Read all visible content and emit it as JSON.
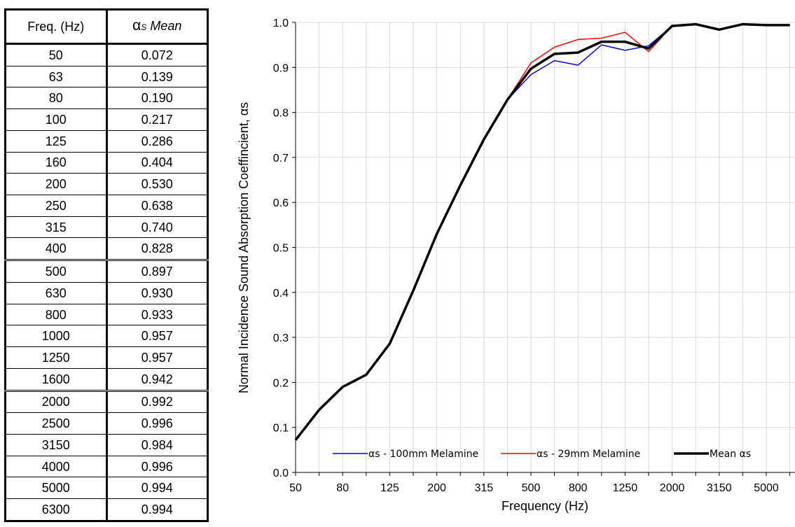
{
  "table": {
    "headers": {
      "freq": "Freq. (Hz)",
      "alpha_symbol": "α",
      "alpha_sub": "S",
      "alpha_mean": "Mean"
    },
    "rows": [
      {
        "freq": "50",
        "alpha": "0.072"
      },
      {
        "freq": "63",
        "alpha": "0.139"
      },
      {
        "freq": "80",
        "alpha": "0.190"
      },
      {
        "freq": "100",
        "alpha": "0.217"
      },
      {
        "freq": "125",
        "alpha": "0.286"
      },
      {
        "freq": "160",
        "alpha": "0.404"
      },
      {
        "freq": "200",
        "alpha": "0.530"
      },
      {
        "freq": "250",
        "alpha": "0.638"
      },
      {
        "freq": "315",
        "alpha": "0.740"
      },
      {
        "freq": "400",
        "alpha": "0.828"
      },
      {
        "freq": "500",
        "alpha": "0.897"
      },
      {
        "freq": "630",
        "alpha": "0.930"
      },
      {
        "freq": "800",
        "alpha": "0.933"
      },
      {
        "freq": "1000",
        "alpha": "0.957"
      },
      {
        "freq": "1250",
        "alpha": "0.957"
      },
      {
        "freq": "1600",
        "alpha": "0.942"
      },
      {
        "freq": "2000",
        "alpha": "0.992"
      },
      {
        "freq": "2500",
        "alpha": "0.996"
      },
      {
        "freq": "3150",
        "alpha": "0.984"
      },
      {
        "freq": "4000",
        "alpha": "0.996"
      },
      {
        "freq": "5000",
        "alpha": "0.994"
      },
      {
        "freq": "6300",
        "alpha": "0.994"
      }
    ]
  },
  "chart_data": {
    "type": "line",
    "title": "",
    "xlabel": "Frequency (Hz)",
    "ylabel": "Normal Incidence Sound Absorption Coeffincient, αs",
    "x": [
      50,
      63,
      80,
      100,
      125,
      160,
      200,
      250,
      315,
      400,
      500,
      630,
      800,
      1000,
      1250,
      1600,
      2000,
      2500,
      3150,
      4000,
      5000,
      6300
    ],
    "x_tick_labels": [
      "50",
      "80",
      "125",
      "200",
      "315",
      "500",
      "800",
      "1250",
      "2000",
      "3150",
      "5000"
    ],
    "ylim": [
      0,
      1
    ],
    "y_ticks": [
      "0.0",
      "0.1",
      "0.2",
      "0.3",
      "0.4",
      "0.5",
      "0.6",
      "0.7",
      "0.8",
      "0.9",
      "1.0"
    ],
    "grid": true,
    "legend_position": "bottom",
    "series": [
      {
        "name": "αs - 100mm Melamine",
        "color": "#0000ff",
        "values": [
          0.072,
          0.139,
          0.19,
          0.217,
          0.286,
          0.404,
          0.53,
          0.638,
          0.74,
          0.828,
          0.884,
          0.915,
          0.905,
          0.95,
          0.938,
          0.948,
          0.992,
          0.996,
          0.984,
          0.996,
          0.994,
          0.994
        ]
      },
      {
        "name": "αs - 29mm Melamine",
        "color": "#ff0000",
        "values": [
          0.072,
          0.139,
          0.19,
          0.217,
          0.286,
          0.404,
          0.53,
          0.638,
          0.74,
          0.828,
          0.91,
          0.945,
          0.962,
          0.965,
          0.978,
          0.935,
          0.992,
          0.996,
          0.984,
          0.996,
          0.994,
          0.994
        ]
      },
      {
        "name": "Mean αs",
        "color": "#000000",
        "values": [
          0.072,
          0.139,
          0.19,
          0.217,
          0.286,
          0.404,
          0.53,
          0.638,
          0.74,
          0.828,
          0.897,
          0.93,
          0.933,
          0.957,
          0.957,
          0.942,
          0.992,
          0.996,
          0.984,
          0.996,
          0.994,
          0.994
        ]
      }
    ]
  }
}
